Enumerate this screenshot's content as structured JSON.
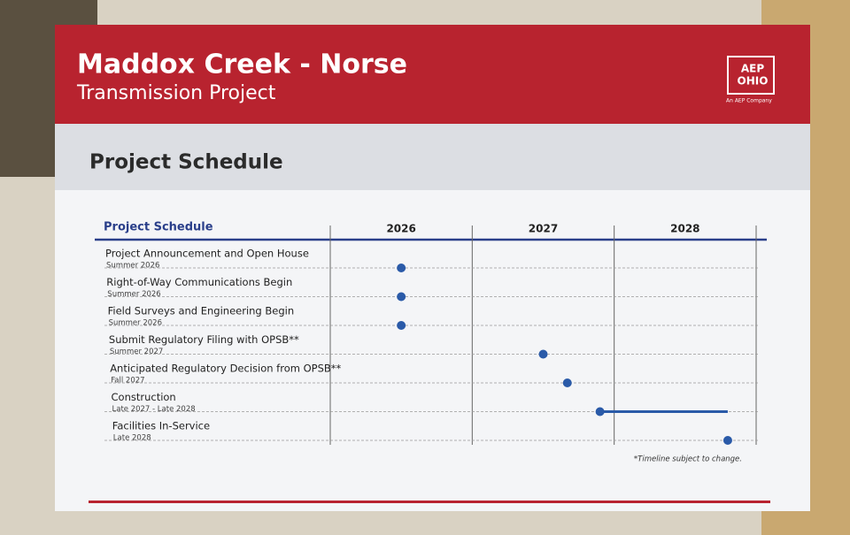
{
  "header": {
    "title": "Maddox Creek - Norse",
    "subtitle": "Transmission Project",
    "logo_top": "AEP",
    "logo_bottom": "OHIO",
    "logo_tagline": "An AEP Company"
  },
  "section_title": "Project Schedule",
  "footnote": "*Timeline subject to change.",
  "chart_data": {
    "type": "gantt",
    "title": "Project Schedule",
    "categories": [
      "Project Announcement and Open House",
      "Right-of-Way Communications Begin",
      "Field Surveys and Engineering Begin",
      "Submit Regulatory Filing with OPSB**",
      "Anticipated Regulatory Decision from OPSB**",
      "Construction",
      "Facilities In-Service"
    ],
    "timing": [
      "Summer 2026",
      "Summer 2026",
      "Summer 2026",
      "Summer 2027",
      "Fall 2027",
      "Late 2027 - Late 2028",
      "Late 2028"
    ],
    "start": [
      2026.5,
      2026.5,
      2026.5,
      2027.5,
      2027.67,
      2027.9,
      2028.8
    ],
    "end": [
      null,
      null,
      null,
      null,
      null,
      2028.8,
      null
    ],
    "color": "#2a5aa8",
    "xlim": [
      2026,
      2029
    ],
    "xticks": [
      {
        "value": 2026.5,
        "label": "2026"
      },
      {
        "value": 2027.5,
        "label": "2027"
      },
      {
        "value": 2028.5,
        "label": "2028"
      }
    ]
  }
}
